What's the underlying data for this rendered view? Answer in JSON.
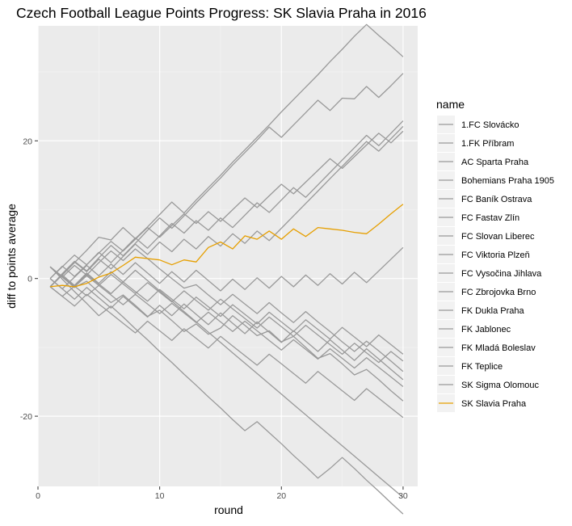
{
  "chart_data": {
    "type": "line",
    "title": "Czech Football League Points Progress: SK Slavia Praha in 2016",
    "xlabel": "round",
    "ylabel": "diff to points average",
    "xlim": [
      0,
      31.2
    ],
    "ylim": [
      -30.2,
      36.7
    ],
    "x_ticks": [
      0,
      10,
      20,
      30
    ],
    "y_ticks": [
      -20,
      0,
      20
    ],
    "x_minor": [
      5,
      15,
      25
    ],
    "y_minor": [
      -10,
      10,
      30
    ],
    "grid": true,
    "legend_position": "right",
    "legend_title": "name",
    "highlight_color": "#E69F00",
    "other_color": "#999999",
    "x": [
      1,
      2,
      3,
      4,
      5,
      6,
      7,
      8,
      9,
      10,
      11,
      12,
      13,
      14,
      15,
      16,
      17,
      18,
      19,
      20,
      21,
      22,
      23,
      24,
      25,
      26,
      27,
      28,
      29,
      30
    ],
    "series": [
      {
        "name": "1.FC Slovácko",
        "values": [
          -1.2,
          0.5,
          2.3,
          4.1,
          6.0,
          5.6,
          7.4,
          5.8,
          7.5,
          9.3,
          11.1,
          9.5,
          11.4,
          13.2,
          15.0,
          16.9,
          18.7,
          20.5,
          22.3,
          24.2,
          26.0,
          27.8,
          29.6,
          31.5,
          33.3,
          35.2,
          36.9,
          35.3,
          33.8,
          32.2
        ]
      },
      {
        "name": "1.FK Příbram",
        "values": [
          1.7,
          -0.1,
          -1.9,
          -3.6,
          -5.4,
          -4.0,
          -5.6,
          -7.3,
          -8.9,
          -10.6,
          -12.2,
          -13.9,
          -15.5,
          -17.2,
          -18.8,
          -20.5,
          -22.1,
          -20.8,
          -22.4,
          -24.0,
          -25.7,
          -27.3,
          -29.0,
          -27.6,
          -26.0,
          -27.6,
          -29.3,
          -30.9,
          -32.6,
          -34.2
        ]
      },
      {
        "name": "AC Sparta Praha",
        "values": [
          -1.2,
          0.7,
          2.5,
          1.1,
          3.0,
          4.8,
          3.3,
          5.1,
          7.0,
          8.8,
          7.3,
          9.1,
          11.0,
          12.8,
          14.6,
          16.5,
          18.3,
          20.1,
          22.0,
          20.5,
          22.3,
          24.1,
          25.9,
          24.4,
          26.2,
          26.1,
          27.9,
          26.3,
          28.0,
          29.8
        ]
      },
      {
        "name": "Bohemians Praha 1905",
        "values": [
          1.7,
          0.2,
          -1.3,
          -0.4,
          -2.0,
          -3.5,
          -2.4,
          -3.9,
          -5.5,
          -4.6,
          -6.1,
          -7.7,
          -6.6,
          -8.1,
          -7.2,
          -5.4,
          -6.8,
          -8.3,
          -7.6,
          -9.2,
          -8.4,
          -10.0,
          -11.6,
          -10.9,
          -12.4,
          -14.0,
          -13.2,
          -14.7,
          -16.3,
          -17.8
        ]
      },
      {
        "name": "FC Baník Ostrava",
        "values": [
          -1.2,
          0.5,
          -1.0,
          0.8,
          -0.7,
          1.0,
          -0.5,
          1.2,
          -0.3,
          -1.8,
          -3.3,
          -4.8,
          -6.3,
          -7.8,
          -9.3,
          -10.8,
          -12.3,
          -13.8,
          -15.3,
          -16.8,
          -18.3,
          -19.8,
          -21.3,
          -22.8,
          -24.3,
          -25.8,
          -27.3,
          -28.8,
          -30.3,
          -31.8
        ]
      },
      {
        "name": "FC Fastav Zlín",
        "values": [
          1.7,
          0.2,
          1.9,
          0.5,
          2.3,
          4.0,
          2.6,
          4.3,
          2.9,
          1.4,
          0.0,
          -1.4,
          -0.9,
          -2.4,
          -3.8,
          -2.3,
          -3.7,
          -5.1,
          -3.5,
          -5.0,
          -6.4,
          -4.8,
          -6.3,
          -7.7,
          -9.2,
          -10.6,
          -9.1,
          -10.5,
          -12.0,
          -13.5
        ]
      },
      {
        "name": "FC Slovan Liberec",
        "values": [
          0.0,
          1.8,
          0.3,
          2.0,
          3.8,
          2.3,
          4.1,
          5.9,
          4.4,
          6.2,
          8.0,
          6.6,
          8.4,
          7.0,
          8.8,
          7.4,
          9.2,
          11.0,
          9.6,
          11.4,
          13.2,
          11.8,
          13.6,
          15.4,
          17.2,
          19.0,
          20.8,
          19.3,
          21.1,
          22.9
        ]
      },
      {
        "name": "FC Viktoria Plzeň",
        "values": [
          -1.2,
          0.6,
          2.4,
          1.0,
          2.8,
          1.4,
          3.2,
          5.0,
          3.5,
          5.3,
          3.9,
          5.7,
          4.3,
          6.1,
          4.7,
          6.5,
          5.1,
          6.9,
          5.5,
          7.3,
          9.1,
          10.9,
          12.7,
          14.5,
          16.3,
          18.1,
          19.9,
          18.5,
          20.3,
          22.1
        ]
      },
      {
        "name": "FC Vysočina Jihlava",
        "values": [
          1.7,
          0.2,
          -1.2,
          0.4,
          -1.0,
          0.6,
          -0.8,
          -2.2,
          -0.6,
          -2.0,
          -3.4,
          -1.8,
          -3.2,
          -4.6,
          -3.0,
          -4.4,
          -5.8,
          -7.2,
          -5.6,
          -7.0,
          -8.4,
          -6.8,
          -8.2,
          -9.6,
          -11.0,
          -9.4,
          -10.8,
          -12.2,
          -10.6,
          -12.0
        ]
      },
      {
        "name": "FC Zbrojovka Brno",
        "values": [
          -1.2,
          -2.6,
          -1.1,
          -2.5,
          -1.0,
          -2.4,
          -3.8,
          -2.3,
          -3.7,
          -5.1,
          -3.6,
          -5.0,
          -6.4,
          -4.9,
          -6.3,
          -7.7,
          -6.2,
          -7.6,
          -9.0,
          -10.4,
          -8.9,
          -10.3,
          -11.7,
          -10.2,
          -11.6,
          -13.0,
          -11.5,
          -12.9,
          -14.3,
          -15.7
        ]
      },
      {
        "name": "FK Dukla Praha",
        "values": [
          0.0,
          -1.5,
          0.2,
          1.9,
          0.4,
          2.1,
          0.6,
          2.3,
          0.8,
          -0.7,
          1.0,
          -0.5,
          1.2,
          -0.3,
          -1.8,
          -0.1,
          -1.6,
          0.1,
          -1.4,
          0.3,
          -1.2,
          0.5,
          -1.0,
          0.7,
          -0.8,
          0.9,
          -0.6,
          1.1,
          2.8,
          4.5
        ]
      },
      {
        "name": "FK Jablonec",
        "values": [
          0.0,
          1.7,
          3.4,
          2.0,
          3.7,
          5.4,
          4.0,
          5.7,
          7.4,
          6.0,
          7.7,
          9.4,
          8.0,
          9.7,
          8.3,
          10.0,
          11.7,
          10.3,
          12.0,
          13.7,
          12.3,
          14.0,
          15.7,
          17.4,
          16.0,
          17.7,
          19.4,
          21.1,
          19.7,
          21.4
        ]
      },
      {
        "name": "FK Mladá Boleslav",
        "values": [
          1.7,
          0.3,
          -1.1,
          0.6,
          -0.8,
          -2.2,
          -0.5,
          -1.9,
          -3.3,
          -1.6,
          -3.0,
          -4.4,
          -2.7,
          -4.1,
          -5.5,
          -3.8,
          -5.2,
          -6.6,
          -4.9,
          -6.3,
          -7.7,
          -6.0,
          -7.4,
          -8.8,
          -7.1,
          -8.5,
          -9.9,
          -8.2,
          -9.6,
          -11.0
        ]
      },
      {
        "name": "FK Teplice",
        "values": [
          0.0,
          -1.5,
          -3.0,
          -1.3,
          -2.8,
          -4.3,
          -2.6,
          -4.1,
          -5.6,
          -3.9,
          -5.4,
          -3.7,
          -5.2,
          -6.7,
          -5.0,
          -6.5,
          -8.0,
          -6.3,
          -7.8,
          -9.3,
          -7.6,
          -9.1,
          -10.6,
          -8.9,
          -10.4,
          -11.9,
          -10.2,
          -11.7,
          -13.2,
          -14.7
        ]
      },
      {
        "name": "SK Sigma Olomouc",
        "values": [
          -1.2,
          -2.6,
          -4.0,
          -2.3,
          -3.7,
          -5.1,
          -6.5,
          -7.9,
          -6.2,
          -7.6,
          -9.0,
          -7.3,
          -8.7,
          -10.1,
          -8.4,
          -9.8,
          -11.2,
          -12.6,
          -11.0,
          -12.4,
          -13.8,
          -15.2,
          -13.5,
          -14.9,
          -16.3,
          -17.7,
          -16.0,
          -17.4,
          -18.8,
          -20.2
        ]
      },
      {
        "name": "SK Slavia Praha",
        "values": [
          -1.2,
          -1.0,
          -1.2,
          -0.7,
          0.2,
          0.8,
          1.9,
          3.1,
          2.9,
          2.7,
          2.0,
          2.7,
          2.4,
          4.5,
          5.3,
          4.3,
          6.2,
          5.7,
          6.9,
          5.7,
          7.2,
          6.1,
          7.4,
          7.2,
          7.0,
          6.7,
          6.5,
          7.9,
          9.4,
          10.8
        ],
        "highlight": true
      }
    ]
  }
}
